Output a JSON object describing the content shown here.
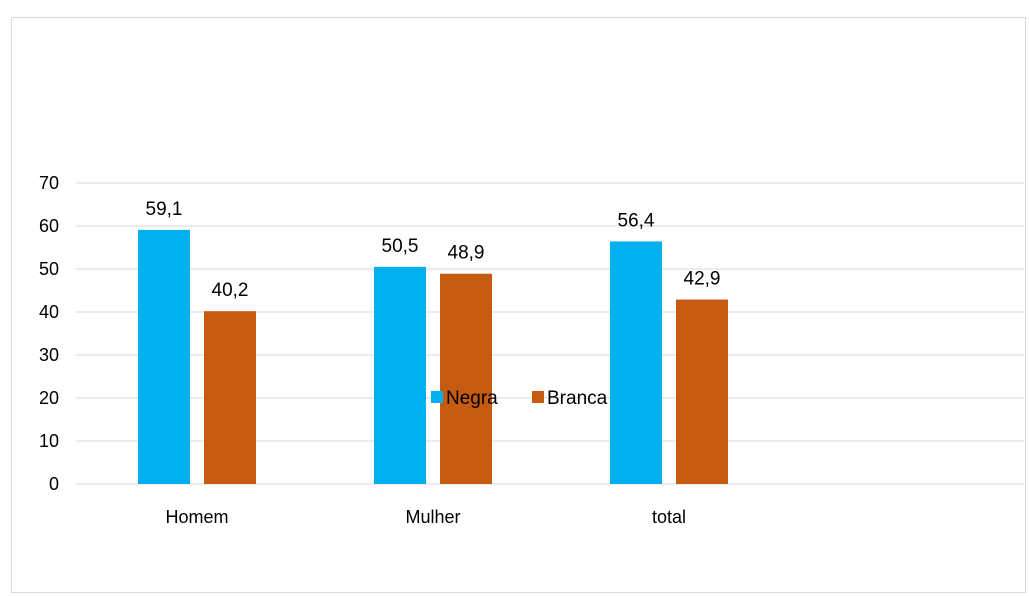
{
  "chart_data": {
    "type": "bar",
    "categories": [
      "Homem",
      "Mulher",
      "total"
    ],
    "series": [
      {
        "name": "Negra",
        "values": [
          59.1,
          50.5,
          56.4
        ],
        "labels": [
          "59,1",
          "50,5",
          "56,4"
        ],
        "color": "#00b0f0"
      },
      {
        "name": "Branca",
        "values": [
          40.2,
          48.9,
          42.9
        ],
        "labels": [
          "40,2",
          "48,9",
          "42,9"
        ],
        "color": "#c55a11"
      }
    ],
    "yticks": [
      "0",
      "10",
      "20",
      "30",
      "40",
      "50",
      "60",
      "70"
    ],
    "ylim": [
      0,
      70
    ],
    "grid": true,
    "gridColor": "#d9d9d9",
    "legend": "bottom"
  }
}
